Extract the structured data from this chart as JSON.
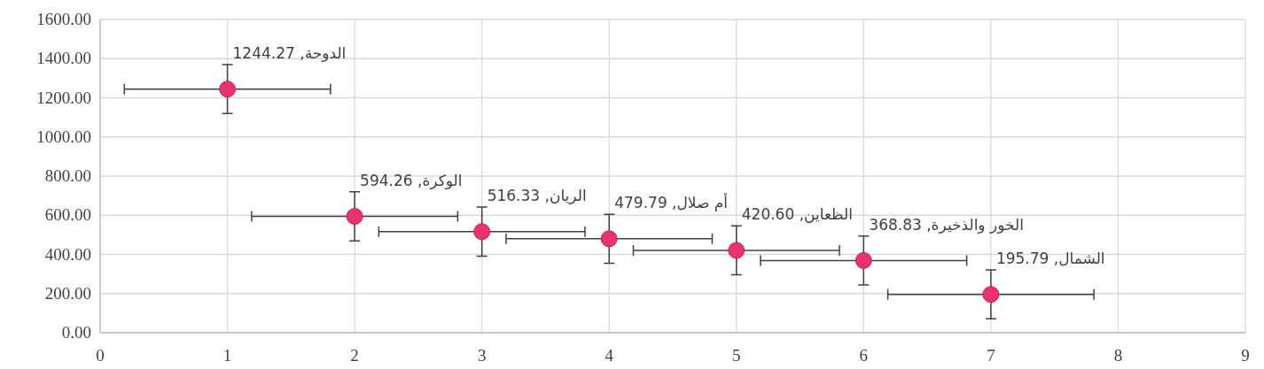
{
  "chart_data": {
    "type": "scatter",
    "x": [
      1,
      2,
      3,
      4,
      5,
      6,
      7
    ],
    "values": [
      1244.27,
      594.26,
      516.33,
      479.79,
      420.6,
      368.83,
      195.79
    ],
    "errors": [
      125,
      125,
      125,
      125,
      125,
      125,
      125
    ],
    "xerrors": [
      0.81,
      0.81,
      0.81,
      0.81,
      0.81,
      0.81,
      0.81
    ],
    "color": "#e8336d",
    "marker": "circle",
    "grid": true,
    "xlim": [
      0,
      9
    ],
    "xticks": [
      0,
      1,
      2,
      3,
      4,
      5,
      6,
      7,
      8,
      9
    ],
    "ylim": [
      0,
      1600
    ],
    "yticks": [
      {
        "value": 0,
        "label": "0.00"
      },
      {
        "value": 200,
        "label": "200.00"
      },
      {
        "value": 400,
        "label": "400.00"
      },
      {
        "value": 600,
        "label": "600.00"
      },
      {
        "value": 800,
        "label": "800.00"
      },
      {
        "value": 1000,
        "label": "1000.00"
      },
      {
        "value": 1200,
        "label": "1200.00"
      },
      {
        "value": 1400,
        "label": "1400.00"
      },
      {
        "value": 1600,
        "label": "1600.00"
      }
    ],
    "annotations": [
      {
        "text": "الدوحة, 1244.27",
        "x": 1,
        "y": 1244.27
      },
      {
        "text": "الوكرة, 594.26",
        "x": 2,
        "y": 594.26
      },
      {
        "text": "الريان, 516.33",
        "x": 3,
        "y": 516.33
      },
      {
        "text": "أم صلال, 479.79",
        "x": 4,
        "y": 479.79
      },
      {
        "text": "الظعاين, 420.60",
        "x": 5,
        "y": 420.6
      },
      {
        "text": "الخور والذخيرة, 368.83",
        "x": 6,
        "y": 368.83
      },
      {
        "text": "الشمال, 195.79",
        "x": 7,
        "y": 195.79
      }
    ]
  }
}
